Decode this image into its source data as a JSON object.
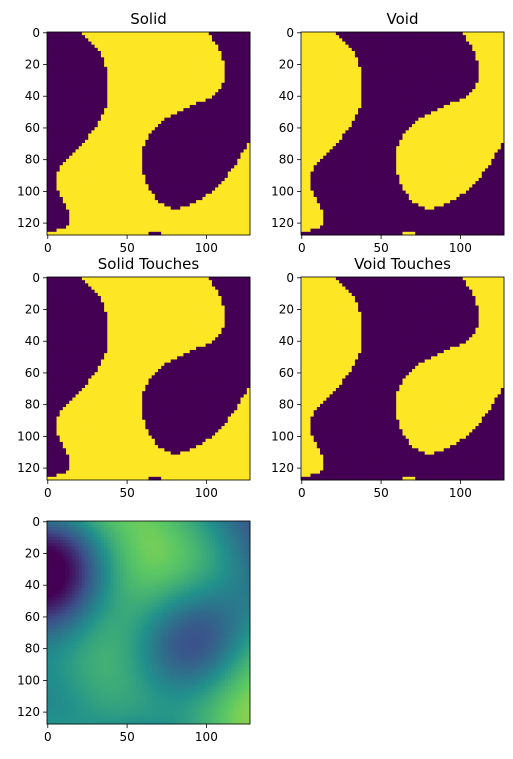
{
  "colors": {
    "solid": "#fde725",
    "void": "#440154",
    "colormap": "viridis"
  },
  "chart_data": [
    {
      "type": "heatmap",
      "title": "Solid",
      "kind": "binary",
      "invert": false,
      "touches": false,
      "xlim": [
        0,
        127
      ],
      "ylim": [
        127,
        0
      ],
      "xticks": [
        "0",
        "50",
        "100"
      ],
      "yticks": [
        "0",
        "20",
        "40",
        "60",
        "80",
        "100",
        "120"
      ]
    },
    {
      "type": "heatmap",
      "title": "Void",
      "kind": "binary",
      "invert": true,
      "touches": false,
      "xlim": [
        0,
        127
      ],
      "ylim": [
        127,
        0
      ],
      "xticks": [
        "0",
        "50",
        "100"
      ],
      "yticks": [
        "0",
        "20",
        "40",
        "60",
        "80",
        "100",
        "120"
      ]
    },
    {
      "type": "heatmap",
      "title": "Solid Touches",
      "kind": "binary",
      "invert": false,
      "touches": true,
      "xlim": [
        0,
        127
      ],
      "ylim": [
        127,
        0
      ],
      "xticks": [
        "0",
        "50",
        "100"
      ],
      "yticks": [
        "0",
        "20",
        "40",
        "60",
        "80",
        "100",
        "120"
      ]
    },
    {
      "type": "heatmap",
      "title": "Void Touches",
      "kind": "binary",
      "invert": true,
      "touches": true,
      "xlim": [
        0,
        127
      ],
      "ylim": [
        127,
        0
      ],
      "xticks": [
        "0",
        "50",
        "100"
      ],
      "yticks": [
        "0",
        "20",
        "40",
        "60",
        "80",
        "100",
        "120"
      ]
    },
    {
      "type": "heatmap",
      "title": "",
      "kind": "continuous",
      "invert": false,
      "touches": false,
      "xlim": [
        0,
        127
      ],
      "ylim": [
        127,
        0
      ],
      "xticks": [
        "0",
        "50",
        "100"
      ],
      "yticks": [
        "0",
        "20",
        "40",
        "60",
        "80",
        "100",
        "120"
      ]
    }
  ]
}
